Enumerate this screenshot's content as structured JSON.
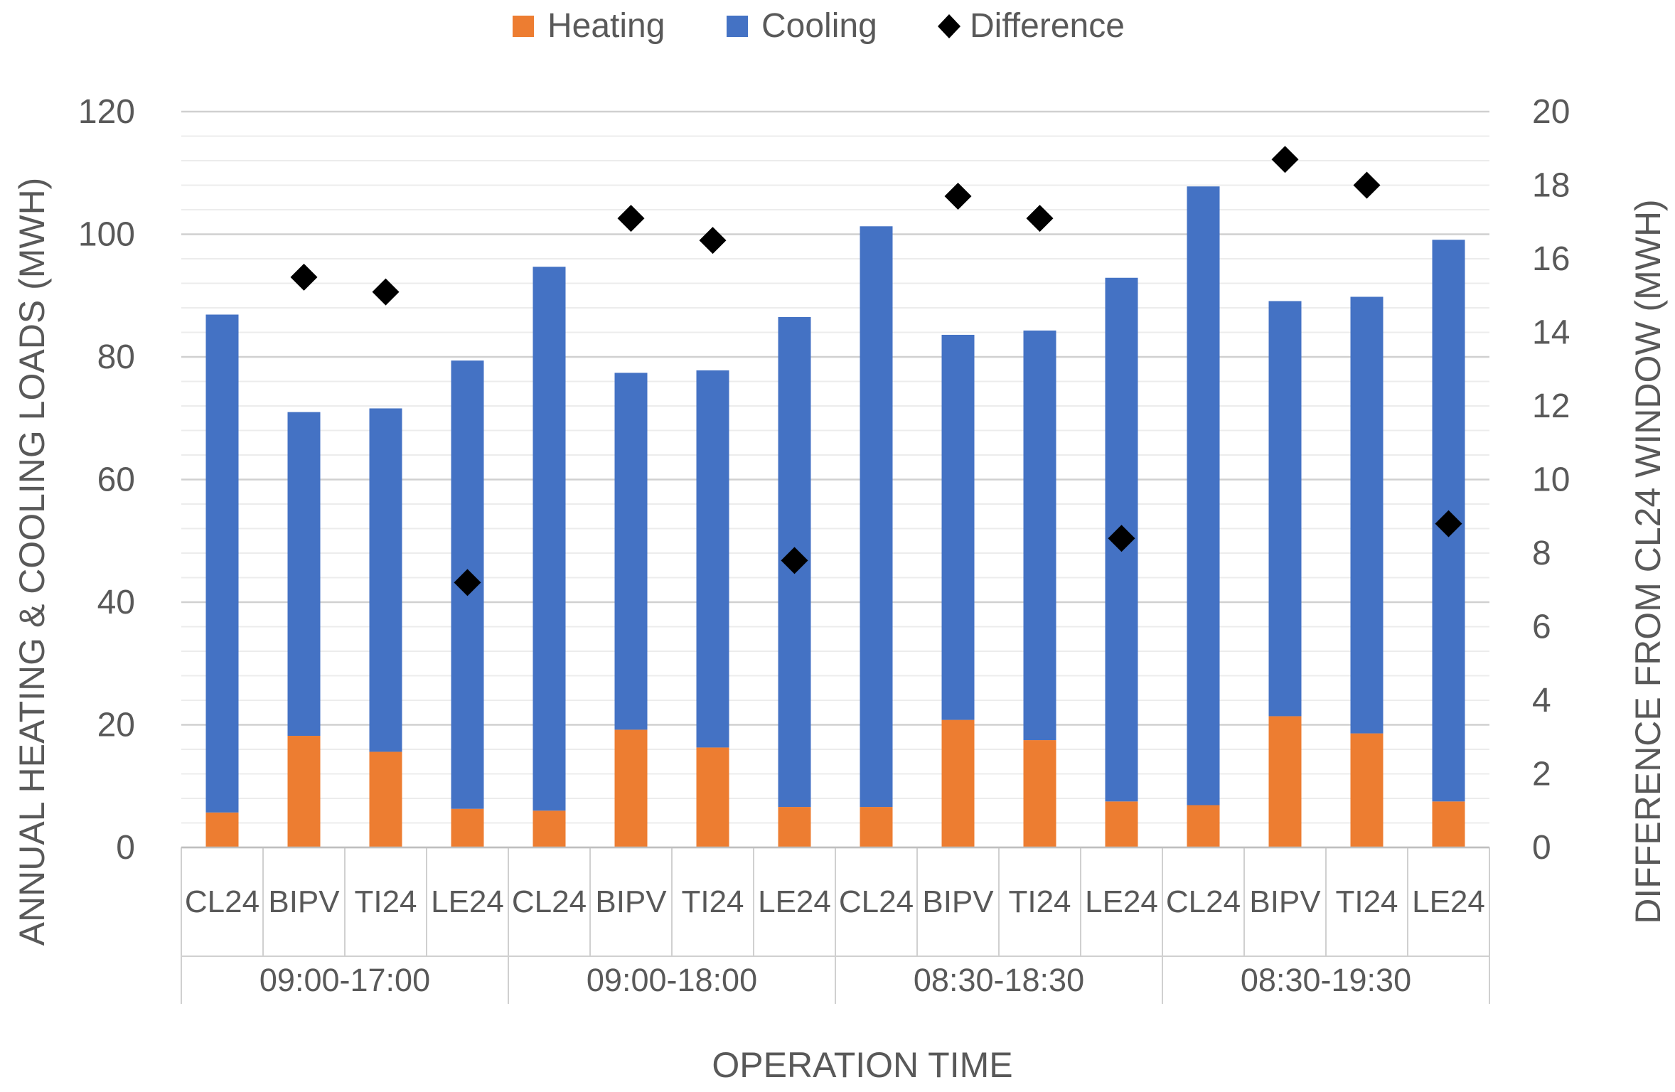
{
  "chart_data": {
    "type": "bar",
    "stacked": true,
    "xlabel": "OPERATION TIME",
    "ylabel": "ANNUAL HEATING & COOLING LOADS (MWH)",
    "y2label": "DIFFERENCE FROM CL24 WINDOW (MWH)",
    "ylim": [
      0,
      120
    ],
    "y2lim": [
      0,
      20
    ],
    "yticks": [
      "0",
      "20",
      "40",
      "60",
      "80",
      "100",
      "120"
    ],
    "y2ticks": [
      "0",
      "2",
      "4",
      "6",
      "8",
      "10",
      "12",
      "14",
      "16",
      "18",
      "20"
    ],
    "groups": [
      "09:00-17:00",
      "09:00-18:00",
      "08:30-18:30",
      "08:30-19:30"
    ],
    "categories": [
      "CL24",
      "BIPV",
      "TI24",
      "LE24",
      "CL24",
      "BIPV",
      "TI24",
      "LE24",
      "CL24",
      "BIPV",
      "TI24",
      "LE24",
      "CL24",
      "BIPV",
      "TI24",
      "LE24"
    ],
    "legend": {
      "position": "top",
      "entries": [
        "Heating",
        "Cooling",
        "Difference"
      ]
    },
    "grid": true,
    "series": [
      {
        "name": "Heating",
        "color": "#ED7D31",
        "axis": "left",
        "values": [
          5.7,
          18.2,
          15.6,
          6.3,
          6.0,
          19.2,
          16.3,
          6.6,
          6.6,
          20.8,
          17.5,
          7.5,
          6.9,
          21.4,
          18.6,
          7.5
        ]
      },
      {
        "name": "Cooling",
        "color": "#4472C4",
        "axis": "left",
        "values": [
          81.2,
          52.8,
          56.0,
          73.1,
          88.7,
          58.2,
          61.5,
          79.9,
          94.7,
          62.8,
          66.8,
          85.4,
          100.9,
          67.7,
          71.2,
          91.6
        ]
      },
      {
        "name": "Difference",
        "color": "#000000",
        "axis": "right",
        "marker": "diamond",
        "values": [
          null,
          15.5,
          15.1,
          7.2,
          null,
          17.1,
          16.5,
          7.8,
          null,
          17.7,
          17.1,
          8.4,
          null,
          18.7,
          18.0,
          8.8
        ]
      }
    ]
  }
}
